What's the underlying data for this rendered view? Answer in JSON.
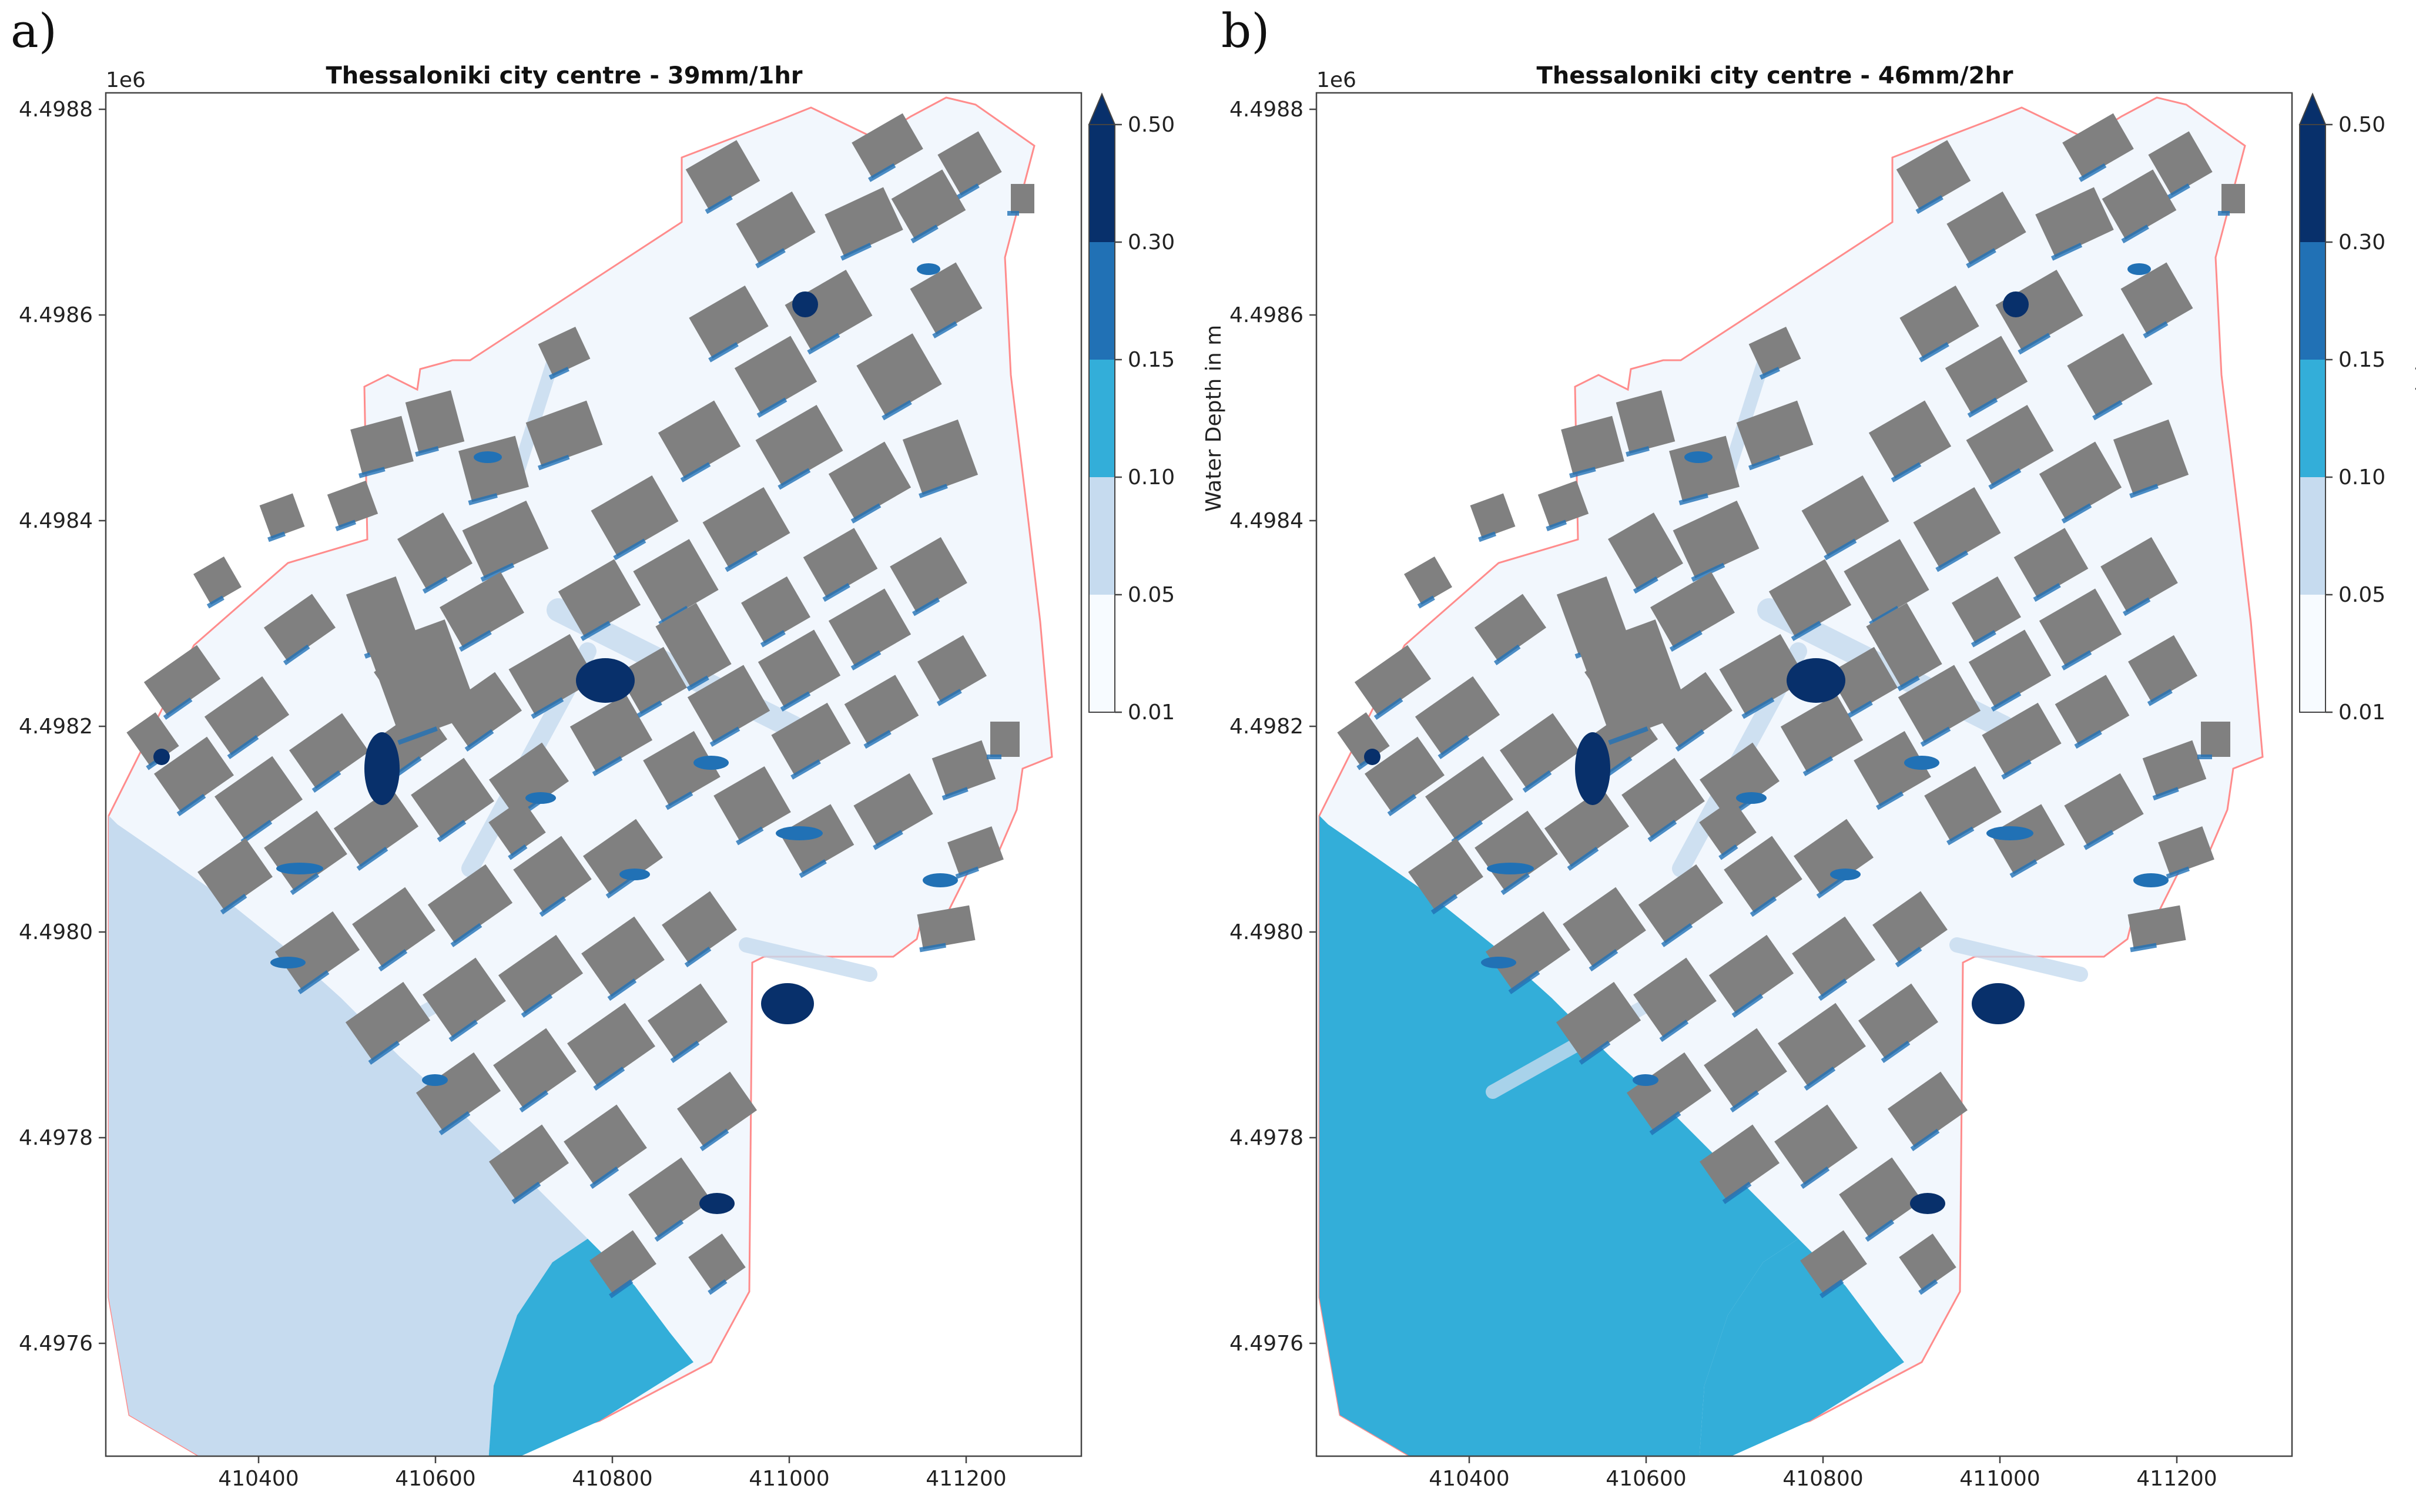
{
  "colors": {
    "background": "#ffffff",
    "dry_area": "#f2f7fd",
    "building": "#808080",
    "boundary": "#ff8c8c",
    "cmap": [
      "#f7fbff",
      "#c6dbef",
      "#33aed9",
      "#2171b5",
      "#08306b"
    ]
  },
  "colorbar": {
    "label": "Water Depth in m",
    "ticks": [
      "0.01",
      "0.05",
      "0.10",
      "0.15",
      "0.30",
      "0.50"
    ],
    "extend": "max"
  },
  "axes": {
    "y_offset_label": "1e6",
    "x_ticks": [
      "410400",
      "410600",
      "410800",
      "411000",
      "411200"
    ],
    "y_ticks": [
      "4.4976",
      "4.4978",
      "4.4980",
      "4.4982",
      "4.4984",
      "4.4986",
      "4.4988"
    ]
  },
  "panels": [
    {
      "letter": "a)",
      "title": "Thessaloniki city centre - 39mm/1hr",
      "sea_west_depth_class": 1,
      "sea_east_depth_class": 2
    },
    {
      "letter": "b)",
      "title": "Thessaloniki city centre - 46mm/2hr",
      "sea_west_depth_class": 2,
      "sea_east_depth_class": 2
    }
  ]
}
